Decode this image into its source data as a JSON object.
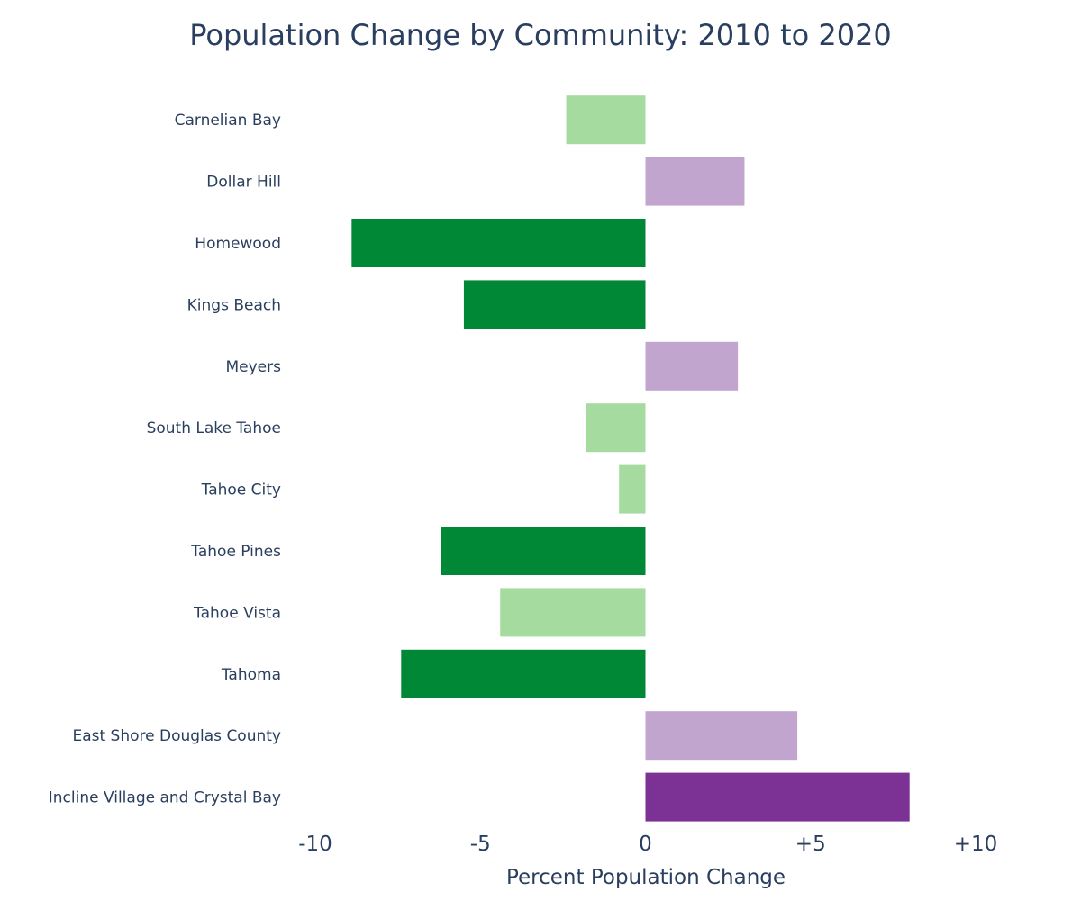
{
  "chart_data": {
    "type": "bar",
    "orientation": "horizontal",
    "title": "Population Change by Community: 2010 to 2020",
    "xlabel": "Percent Population Change",
    "ylabel": "",
    "xlim": [
      -10,
      10
    ],
    "grid": false,
    "legend": "none",
    "x_ticks": [
      {
        "value": -10,
        "label": "-10"
      },
      {
        "value": -5,
        "label": "-5"
      },
      {
        "value": 0,
        "label": "0"
      },
      {
        "value": 5,
        "label": "+5"
      },
      {
        "value": 10,
        "label": "+10"
      }
    ],
    "colors": {
      "strong_decline": "#008837",
      "mild_decline": "#a6dba0",
      "mild_growth": "#c2a5cf",
      "strong_growth": "#7b3294"
    },
    "bars": [
      {
        "category": "Carnelian Bay",
        "value": -2.4,
        "color": "#a6dba0"
      },
      {
        "category": "Dollar Hill",
        "value": 3.0,
        "color": "#c2a5cf"
      },
      {
        "category": "Homewood",
        "value": -8.9,
        "color": "#008837"
      },
      {
        "category": "Kings Beach",
        "value": -5.5,
        "color": "#008837"
      },
      {
        "category": "Meyers",
        "value": 2.8,
        "color": "#c2a5cf"
      },
      {
        "category": "South Lake Tahoe",
        "value": -1.8,
        "color": "#a6dba0"
      },
      {
        "category": "Tahoe City",
        "value": -0.8,
        "color": "#a6dba0"
      },
      {
        "category": "Tahoe Pines",
        "value": -6.2,
        "color": "#008837"
      },
      {
        "category": "Tahoe Vista",
        "value": -4.4,
        "color": "#a6dba0"
      },
      {
        "category": "Tahoma",
        "value": -7.4,
        "color": "#008837"
      },
      {
        "category": "East Shore Douglas County",
        "value": 4.6,
        "color": "#c2a5cf"
      },
      {
        "category": "Incline Village and Crystal Bay",
        "value": 8.0,
        "color": "#7b3294"
      }
    ]
  }
}
